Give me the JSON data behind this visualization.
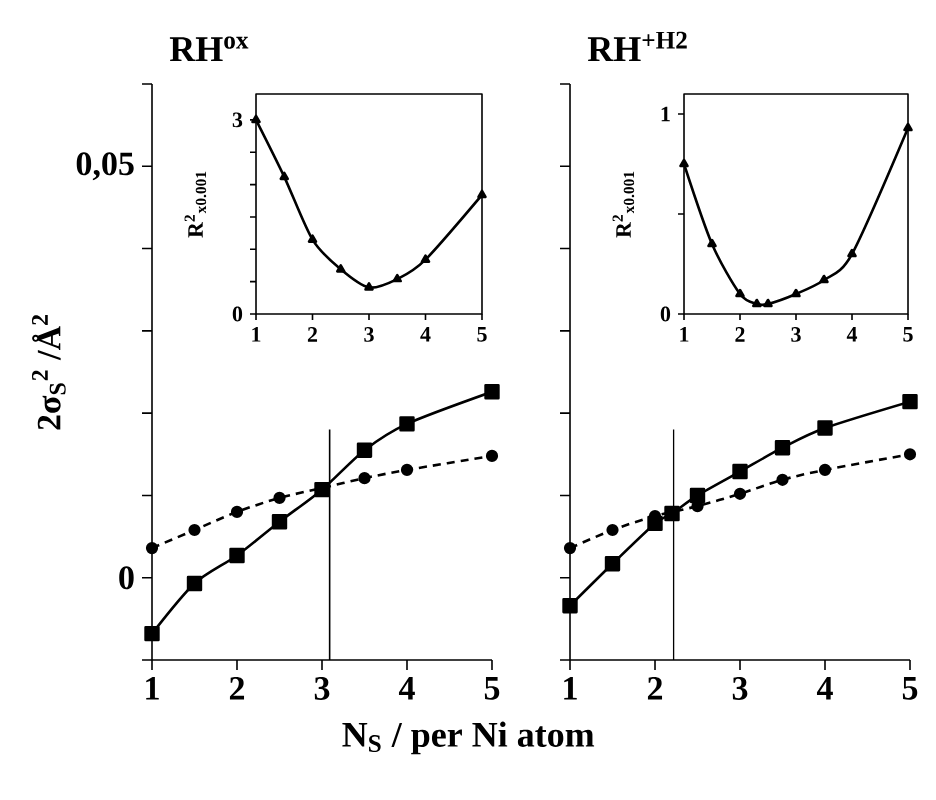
{
  "chart_data": [
    {
      "type": "line",
      "title": "RH$^{ox}$",
      "xlabel": "N$_{S}$ / per Ni atom",
      "ylabel": "2σ$_{S}$$^{2}$ /Å$^{2}$",
      "xlim": [
        1,
        5
      ],
      "ylim": [
        -0.01,
        0.06
      ],
      "xticks": [
        1,
        2,
        3,
        4,
        5
      ],
      "yticks": [
        {
          "value": -0.01,
          "label": null
        },
        0,
        {
          "value": 0.01,
          "label": null
        },
        {
          "value": 0.02,
          "label": null
        },
        {
          "value": 0.03,
          "label": null
        },
        {
          "value": 0.04,
          "label": null
        },
        {
          "value": 0.05,
          "label": "0,05"
        },
        {
          "value": 0.06,
          "label": null
        }
      ],
      "grid": false,
      "ref_lines": [
        {
          "axis": "x",
          "value": 3.09
        }
      ],
      "series": [
        {
          "color": "#000000",
          "marker": "square",
          "line_style": "solid",
          "x": [
            1,
            1.5,
            2,
            2.5,
            3,
            3.5,
            4,
            5
          ],
          "values": [
            -0.0068,
            -0.0007,
            0.0027,
            0.0068,
            0.0107,
            0.0155,
            0.0187,
            0.0226
          ]
        },
        {
          "color": "#000000",
          "marker": "circle",
          "line_style": "dashed",
          "x": [
            1,
            1.5,
            2,
            2.5,
            3,
            3.5,
            4,
            5
          ],
          "values": [
            0.0036,
            0.0058,
            0.008,
            0.0097,
            0.0109,
            0.0121,
            0.0131,
            0.0148
          ]
        }
      ]
    },
    {
      "type": "line",
      "ylabel": "R$^{2}$$_{x0.001}$",
      "xlim": [
        1,
        5
      ],
      "ylim": [
        0,
        3.4
      ],
      "xticks": [
        1,
        2,
        3,
        4,
        5
      ],
      "yticks": [
        0,
        {
          "value": 0.5,
          "label": null
        },
        {
          "value": 1,
          "label": null
        },
        {
          "value": 1.5,
          "label": null
        },
        {
          "value": 2,
          "label": null
        },
        {
          "value": 2.5,
          "label": null
        },
        3
      ],
      "grid": false,
      "series": [
        {
          "color": "#000000",
          "marker": "triangle",
          "line_style": "solid",
          "x": [
            1,
            1.5,
            2,
            2.5,
            3,
            3.5,
            4,
            5
          ],
          "values": [
            3.0,
            2.12,
            1.15,
            0.69,
            0.41,
            0.54,
            0.84,
            1.84
          ]
        }
      ]
    },
    {
      "type": "line",
      "title": "RH$^{+H2}$",
      "xlim": [
        1,
        5
      ],
      "ylim": [
        -0.01,
        0.06
      ],
      "xticks": [
        1,
        2,
        3,
        4,
        5
      ],
      "yticks": [
        -0.01,
        0,
        0.01,
        0.02,
        0.03,
        0.04,
        0.05,
        0.06
      ],
      "tick_labels": "x",
      "grid": false,
      "ref_lines": [
        {
          "axis": "x",
          "value": 2.22
        }
      ],
      "series": [
        {
          "color": "#000000",
          "marker": "square",
          "line_style": "solid",
          "x": [
            1,
            1.5,
            2,
            2.2,
            2.5,
            3,
            3.5,
            4,
            5
          ],
          "values": [
            -0.0034,
            0.0017,
            0.0066,
            0.0078,
            0.01,
            0.0129,
            0.0158,
            0.0182,
            0.0214
          ]
        },
        {
          "color": "#000000",
          "marker": "circle",
          "line_style": "dashed",
          "x": [
            1,
            1.5,
            2,
            2.5,
            3,
            3.5,
            4,
            5
          ],
          "values": [
            0.0036,
            0.0058,
            0.0075,
            0.0087,
            0.0102,
            0.0119,
            0.0131,
            0.015
          ]
        }
      ]
    },
    {
      "type": "line",
      "ylabel": "R$^{2}$$_{x0.001}$",
      "xlim": [
        1,
        5
      ],
      "ylim": [
        0,
        1.1
      ],
      "xticks": [
        1,
        2,
        3,
        4,
        5
      ],
      "yticks": [
        0,
        {
          "value": 0.5,
          "label": null
        },
        1
      ],
      "grid": false,
      "series": [
        {
          "color": "#000000",
          "marker": "triangle",
          "line_style": "solid",
          "x": [
            1,
            1.5,
            2,
            2.3,
            2.5,
            3,
            3.5,
            4,
            5
          ],
          "values": [
            0.75,
            0.35,
            0.1,
            0.05,
            0.05,
            0.1,
            0.17,
            0.3,
            0.93
          ]
        }
      ]
    }
  ]
}
